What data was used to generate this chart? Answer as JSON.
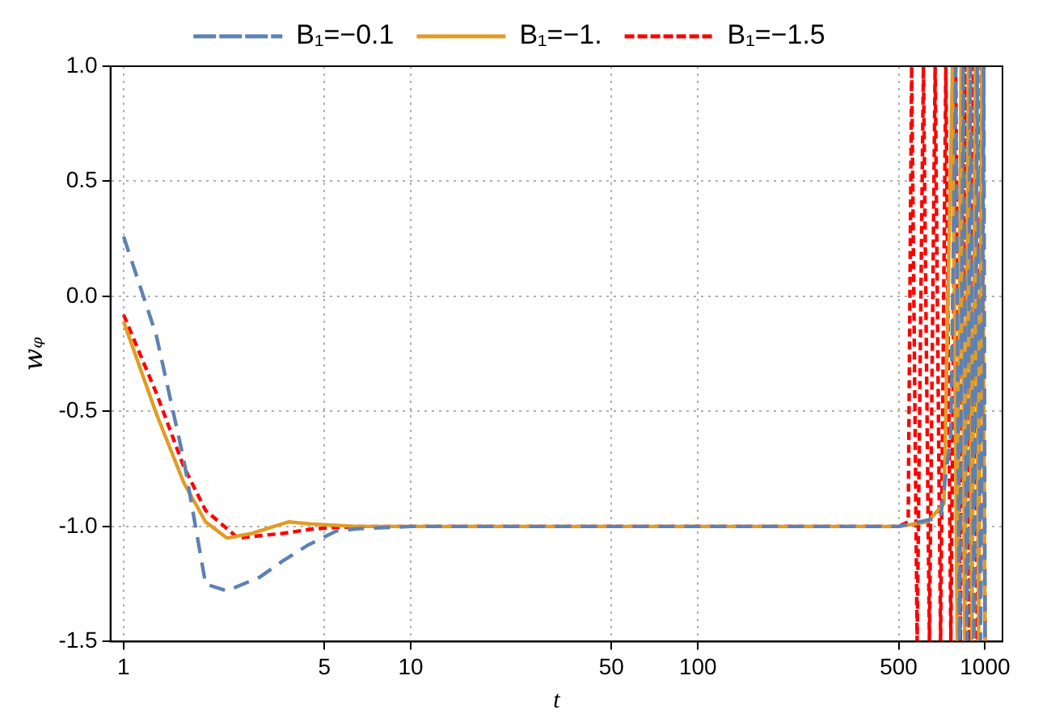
{
  "chart_data": {
    "type": "line",
    "xlabel": "t",
    "ylabel": "wᵩ",
    "log": "x",
    "grid": true,
    "legend": "top",
    "marker": "none",
    "xlim": [
      0.9,
      1150
    ],
    "xticks": [
      1,
      5,
      10,
      50,
      100,
      500,
      1000
    ],
    "ylim": [
      -1.5,
      1
    ],
    "yticks": [
      {
        "value": -1.5,
        "label": "-1.5"
      },
      {
        "value": -1,
        "label": "-1.0"
      },
      -0.5,
      {
        "value": 0,
        "label": "0.0"
      },
      0.5,
      {
        "value": 1,
        "label": "1.0"
      }
    ],
    "series": [
      {
        "name": "B₁=−0.1",
        "color": "#5e81b5",
        "line_style": "dashed",
        "x": [
          1,
          1.3,
          1.62,
          1.93,
          2.29,
          2.98,
          3.58,
          4.4,
          5.5,
          6.5,
          10,
          100,
          500,
          700,
          760,
          790,
          815,
          840,
          865,
          890,
          915,
          940,
          965,
          990,
          1000
        ],
        "values": [
          0.26,
          -0.17,
          -0.71,
          -1.25,
          -1.28,
          -1.22,
          -1.15,
          -1.08,
          -1.02,
          -1.01,
          -1,
          -1,
          -1,
          -0.96,
          -0.6,
          1,
          -1.5,
          1,
          -1.5,
          1,
          -1.5,
          1,
          -1.5,
          1,
          -1.5
        ]
      },
      {
        "name": "B₁=−1.",
        "color": "#e19c24",
        "line_style": "solid",
        "x": [
          1,
          1.3,
          1.62,
          1.93,
          2.29,
          2.8,
          3.76,
          4.6,
          6.5,
          10,
          100,
          500,
          630,
          720,
          770,
          800,
          825,
          850,
          875,
          900,
          925,
          950,
          975,
          1000
        ],
        "values": [
          -0.11,
          -0.51,
          -0.81,
          -0.98,
          -1.05,
          -1.03,
          -0.98,
          -0.99,
          -1,
          -1,
          -1,
          -1,
          -0.98,
          -0.9,
          1,
          -1.5,
          1,
          -1.5,
          1,
          -1.5,
          1,
          -1.5,
          1,
          -1.5
        ]
      },
      {
        "name": "B₁=−1.5",
        "color": "#ff0000",
        "line_style": "dotted",
        "x": [
          1,
          1.3,
          1.62,
          1.93,
          2.5,
          3.58,
          4.6,
          6.5,
          10,
          100,
          500,
          540,
          555,
          580,
          610,
          640,
          670,
          700,
          730,
          760,
          790,
          820,
          850,
          880,
          910,
          940,
          970,
          1000
        ],
        "values": [
          -0.08,
          -0.42,
          -0.74,
          -0.93,
          -1.05,
          -1.03,
          -1.01,
          -1,
          -1,
          -1,
          -1,
          -0.98,
          1,
          -1.5,
          1,
          -1.5,
          1,
          -1.5,
          1,
          -1.5,
          1,
          -1.5,
          1,
          -1.5,
          1,
          -1.5,
          1,
          -1.5
        ]
      }
    ]
  }
}
